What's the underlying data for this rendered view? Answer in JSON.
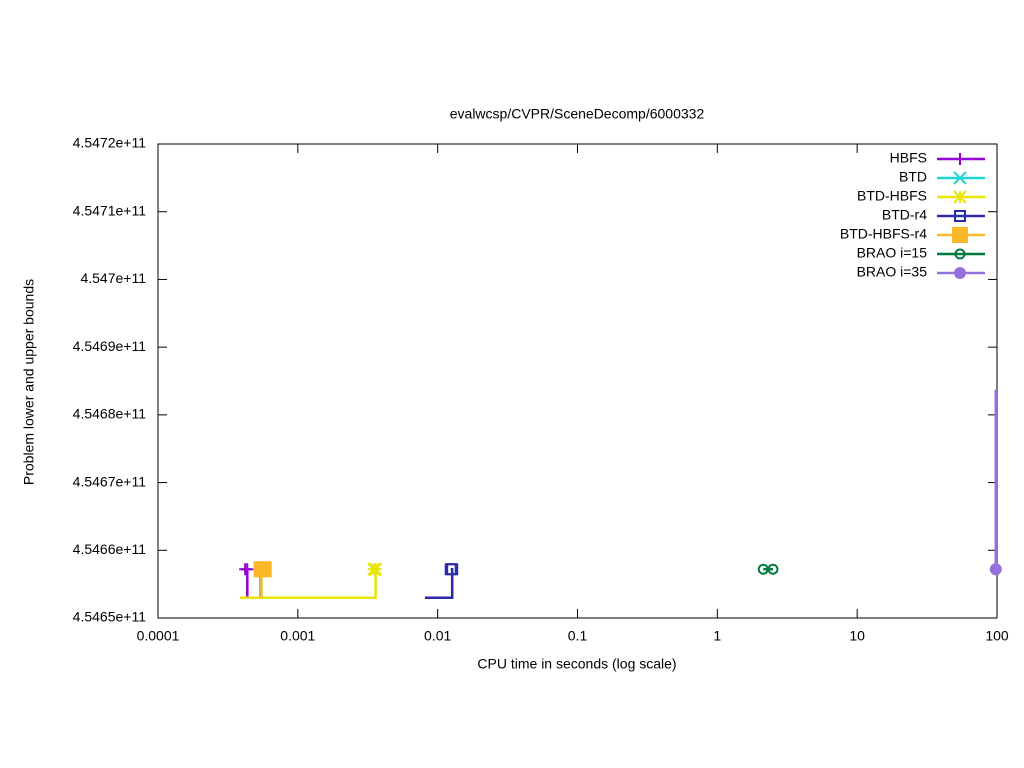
{
  "chart_data": {
    "type": "line",
    "title": "evalwcsp/CVPR/SceneDecomp/6000332",
    "x_label": "CPU time in seconds (log scale)",
    "y_label": "Problem lower and upper bounds",
    "x_log": true,
    "legend": "top-right",
    "xlim": [
      0.0001,
      100
    ],
    "xticks": [
      0.0001,
      0.001,
      0.01,
      0.1,
      1,
      10,
      100
    ],
    "ylim": [
      454650000000,
      454720000000
    ],
    "yticks": [
      {
        "value": 454650000000,
        "label": "4.5465e+11"
      },
      {
        "value": 454660000000,
        "label": "4.5466e+11"
      },
      {
        "value": 454670000000,
        "label": "4.5467e+11"
      },
      {
        "value": 454680000000,
        "label": "4.5468e+11"
      },
      {
        "value": 454690000000,
        "label": "4.5469e+11"
      },
      {
        "value": 454700000000,
        "label": "4.547e+11"
      },
      {
        "value": 454710000000,
        "label": "4.5471e+11"
      },
      {
        "value": 454720000000,
        "label": "4.5472e+11"
      }
    ],
    "series": [
      {
        "name": "HBFS",
        "color": "#9400d3",
        "marker": "plus",
        "x": [
          0.000435,
          0.000435,
          0.00042
        ],
        "values": [
          454653000000,
          454657200000,
          454657200000
        ]
      },
      {
        "name": "BTD",
        "color": "#22d3d3",
        "marker": "cross",
        "x": [
          0.00054,
          0.00054
        ],
        "values": [
          454653000000,
          454657200000
        ]
      },
      {
        "name": "BTD-HBFS",
        "color": "#e6e600",
        "marker": "star",
        "x": [
          0.000385,
          0.0036,
          0.0036,
          0.0035
        ],
        "values": [
          454653000000,
          454653000000,
          454657200000,
          454657200000
        ]
      },
      {
        "name": "BTD-r4",
        "color": "#2a2aaa",
        "marker": "open-square",
        "x": [
          0.0081,
          0.0127,
          0.0127,
          0.0124
        ],
        "values": [
          454653000000,
          454653000000,
          454657200000,
          454657200000
        ]
      },
      {
        "name": "BTD-HBFS-r4",
        "color": "#fbb829",
        "marker": "square",
        "x": [
          0.00055,
          0.00055,
          0.00057
        ],
        "values": [
          454653000000,
          454657200000,
          454657200000
        ]
      },
      {
        "name": "BRAO i=15",
        "color": "#007a3d",
        "marker": "open-circle",
        "x": [
          2.13,
          2.5
        ],
        "values": [
          454657200000,
          454657200000
        ]
      },
      {
        "name": "BRAO i=35",
        "color": "#9370db",
        "marker": "circle",
        "x": [
          98,
          98
        ],
        "values": [
          454683700000,
          454657200000
        ]
      }
    ]
  }
}
